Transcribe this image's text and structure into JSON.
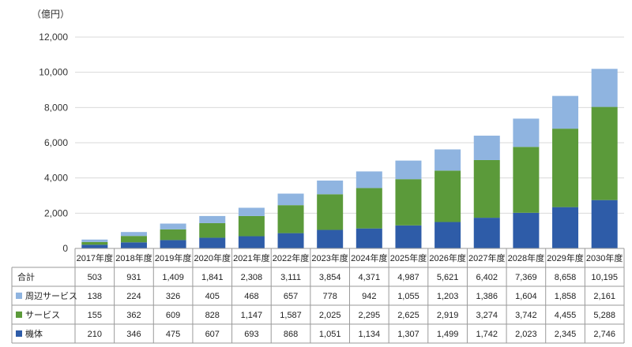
{
  "chart_data": {
    "type": "bar",
    "stacked": true,
    "unit_label": "（億円）",
    "ylim": [
      0,
      12000
    ],
    "y_ticks": [
      "0",
      "2,000",
      "4,000",
      "6,000",
      "8,000",
      "10,000",
      "12,000"
    ],
    "grid": true,
    "categories": [
      "2017年度",
      "2018年度",
      "2019年度",
      "2020年度",
      "2021年度",
      "2022年度",
      "2023年度",
      "2024年度",
      "2025年度",
      "2026年度",
      "2027年度",
      "2028年度",
      "2029年度",
      "2030年度"
    ],
    "series": [
      {
        "name": "機体",
        "color": "#2e5ca8",
        "values": [
          210,
          346,
          475,
          607,
          693,
          868,
          1051,
          1134,
          1307,
          1499,
          1742,
          2023,
          2345,
          2746
        ],
        "labels": [
          "210",
          "346",
          "475",
          "607",
          "693",
          "868",
          "1,051",
          "1,134",
          "1,307",
          "1,499",
          "1,742",
          "2,023",
          "2,345",
          "2,746"
        ]
      },
      {
        "name": "サービス",
        "color": "#5b9a3a",
        "values": [
          155,
          362,
          609,
          828,
          1147,
          1587,
          2025,
          2295,
          2625,
          2919,
          3274,
          3742,
          4455,
          5288
        ],
        "labels": [
          "155",
          "362",
          "609",
          "828",
          "1,147",
          "1,587",
          "2,025",
          "2,295",
          "2,625",
          "2,919",
          "3,274",
          "3,742",
          "4,455",
          "5,288"
        ]
      },
      {
        "name": "周辺サービス",
        "color": "#8fb4e0",
        "values": [
          138,
          224,
          326,
          405,
          468,
          657,
          778,
          942,
          1055,
          1203,
          1386,
          1604,
          1858,
          2161
        ],
        "labels": [
          "138",
          "224",
          "326",
          "405",
          "468",
          "657",
          "778",
          "942",
          "1,055",
          "1,203",
          "1,386",
          "1,604",
          "1,858",
          "2,161"
        ]
      }
    ],
    "total": {
      "name": "合計",
      "values": [
        503,
        931,
        1409,
        1841,
        2308,
        3111,
        3854,
        4371,
        4987,
        5621,
        6402,
        7369,
        8658,
        10195
      ],
      "labels": [
        "503",
        "931",
        "1,409",
        "1,841",
        "2,308",
        "3,111",
        "3,854",
        "4,371",
        "4,987",
        "5,621",
        "6,402",
        "7,369",
        "8,658",
        "10,195"
      ]
    },
    "table_row_order": [
      "total",
      "周辺サービス",
      "サービス",
      "機体"
    ]
  }
}
